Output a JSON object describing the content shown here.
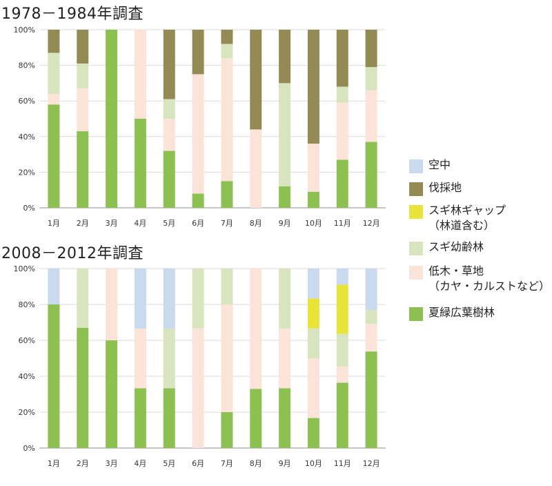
{
  "colors": {
    "air": "#c9d9ee",
    "felled": "#948a54",
    "gap": "#e8e43a",
    "young": "#d7e4bd",
    "shrub": "#fbe4d7",
    "deciduous": "#8cc152"
  },
  "legend": [
    {
      "key": "air",
      "label": "空中"
    },
    {
      "key": "felled",
      "label": "伐採地"
    },
    {
      "key": "gap",
      "label": "スギ林ギャップ\n（林道含む）"
    },
    {
      "key": "young",
      "label": "スギ幼齢林"
    },
    {
      "key": "shrub",
      "label": "低木・草地\n（カヤ・カルストなど）"
    },
    {
      "key": "deciduous",
      "label": "夏緑広葉樹林"
    }
  ],
  "chart_data": [
    {
      "type": "bar",
      "stacked": true,
      "title": "1978－1984年調査",
      "categories": [
        "1月",
        "2月",
        "3月",
        "4月",
        "5月",
        "6月",
        "7月",
        "8月",
        "9月",
        "10月",
        "11月",
        "12月"
      ],
      "y_ticks": [
        "0%",
        "20%",
        "40%",
        "60%",
        "80%",
        "100%"
      ],
      "ylim": [
        0,
        100
      ],
      "series": [
        {
          "name": "夏緑広葉樹林",
          "key": "deciduous",
          "values": [
            58,
            43,
            100,
            50,
            32,
            8,
            15,
            0,
            12,
            9,
            27,
            37
          ]
        },
        {
          "name": "低木・草地（カヤ・カルストなど）",
          "key": "shrub",
          "values": [
            6,
            24,
            0,
            50,
            18,
            67,
            69,
            44,
            0,
            27,
            32,
            29
          ]
        },
        {
          "name": "スギ幼齢林",
          "key": "young",
          "values": [
            23,
            14,
            0,
            0,
            11,
            0,
            8,
            0,
            58,
            0,
            9,
            13
          ]
        },
        {
          "name": "スギ林ギャップ（林道含む）",
          "key": "gap",
          "values": [
            0,
            0,
            0,
            0,
            0,
            0,
            0,
            0,
            0,
            0,
            0,
            0
          ]
        },
        {
          "name": "伐採地",
          "key": "felled",
          "values": [
            13,
            19,
            0,
            0,
            39,
            25,
            8,
            56,
            30,
            64,
            32,
            21
          ]
        },
        {
          "name": "空中",
          "key": "air",
          "values": [
            0,
            0,
            0,
            0,
            0,
            0,
            0,
            0,
            0,
            0,
            0,
            0
          ]
        }
      ],
      "grid": true
    },
    {
      "type": "bar",
      "stacked": true,
      "title": "2008－2012年調査",
      "categories": [
        "1月",
        "2月",
        "3月",
        "4月",
        "5月",
        "6月",
        "7月",
        "8月",
        "9月",
        "10月",
        "11月",
        "12月"
      ],
      "y_ticks": [
        "0%",
        "20%",
        "40%",
        "60%",
        "80%",
        "100%"
      ],
      "ylim": [
        0,
        100
      ],
      "series": [
        {
          "name": "夏緑広葉樹林",
          "key": "deciduous",
          "values": [
            80,
            67,
            60,
            33.3,
            33.3,
            0,
            20,
            33,
            33.3,
            16.7,
            36.4,
            53.8
          ]
        },
        {
          "name": "低木・草地（カヤ・カルストなど）",
          "key": "shrub",
          "values": [
            0,
            0,
            40,
            33.3,
            0,
            66.7,
            60,
            67,
            33.3,
            33.3,
            9.1,
            15.4
          ]
        },
        {
          "name": "スギ幼齢林",
          "key": "young",
          "values": [
            0,
            33,
            0,
            0,
            33.3,
            33.3,
            20,
            0,
            33.4,
            16.7,
            18.2,
            7.7
          ]
        },
        {
          "name": "スギ林ギャップ（林道含む）",
          "key": "gap",
          "values": [
            0,
            0,
            0,
            0,
            0,
            0,
            0,
            0,
            0,
            16.6,
            27.3,
            0
          ]
        },
        {
          "name": "伐採地",
          "key": "felled",
          "values": [
            0,
            0,
            0,
            0,
            0,
            0,
            0,
            0,
            0,
            0,
            0,
            0
          ]
        },
        {
          "name": "空中",
          "key": "air",
          "values": [
            20,
            0,
            0,
            33.4,
            33.4,
            0,
            0,
            0,
            0,
            16.7,
            9,
            23.1
          ]
        }
      ],
      "grid": true
    }
  ]
}
